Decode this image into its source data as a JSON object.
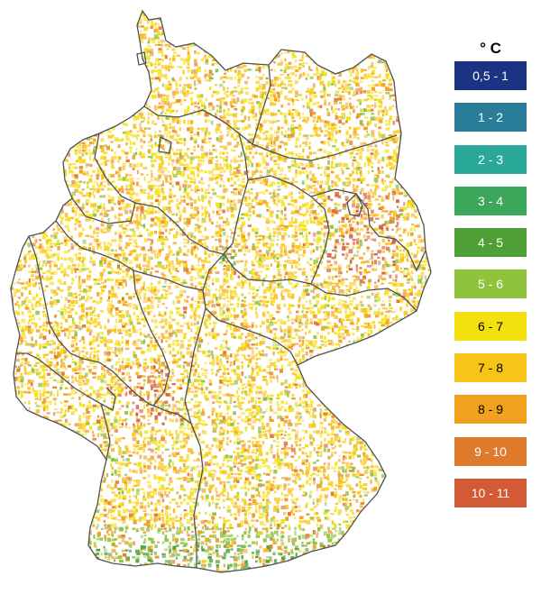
{
  "legend": {
    "title": "° C",
    "items": [
      {
        "label": "0,5 - 1",
        "color": "#1b3383",
        "text_color": "#ffffff"
      },
      {
        "label": "1 - 2",
        "color": "#2a7d99",
        "text_color": "#ffffff"
      },
      {
        "label": "2 - 3",
        "color": "#2aa99a",
        "text_color": "#ffffff"
      },
      {
        "label": "3 - 4",
        "color": "#3aa75a",
        "text_color": "#ffffff"
      },
      {
        "label": "4 - 5",
        "color": "#4ea034",
        "text_color": "#ffffff"
      },
      {
        "label": "5 - 6",
        "color": "#8ec33b",
        "text_color": "#ffffff"
      },
      {
        "label": "6 - 7",
        "color": "#f3e10f",
        "text_color": "#000000"
      },
      {
        "label": "7 - 8",
        "color": "#f8c418",
        "text_color": "#000000"
      },
      {
        "label": "8 - 9",
        "color": "#f1a11d",
        "text_color": "#000000"
      },
      {
        "label": "9 - 10",
        "color": "#e17b2c",
        "text_color": "#ffffff"
      },
      {
        "label": "10 - 11",
        "color": "#d45a36",
        "text_color": "#ffffff"
      }
    ]
  },
  "map": {
    "border_color": "#505050",
    "fill_colors": [
      "#f3e10f",
      "#f8c418",
      "#f1a11d",
      "#e17b2c",
      "#d45a36",
      "#8ec33b",
      "#4ea034"
    ]
  }
}
